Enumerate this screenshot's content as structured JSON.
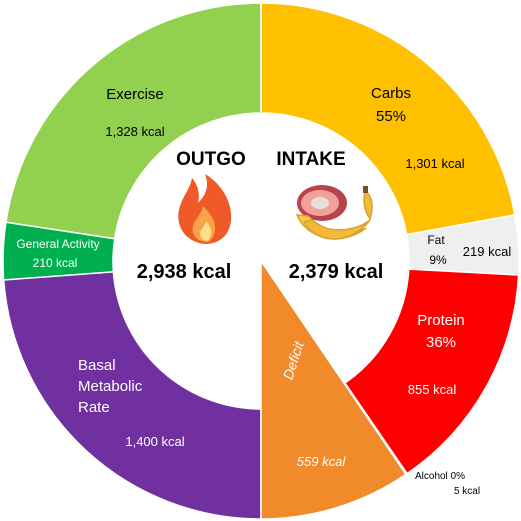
{
  "chart_data": {
    "type": "pie",
    "sides": [
      {
        "heading": "OUTGO",
        "total_label": "2,938 kcal",
        "total": 2938,
        "slices": [
          {
            "name_lines": [
              "Exercise"
            ],
            "value_label": "1,328 kcal",
            "value": 1328,
            "color": "#92D050"
          },
          {
            "name_lines": [
              "General Activity"
            ],
            "value_label": "210 kcal",
            "value": 210,
            "color": "#00B050"
          },
          {
            "name_lines": [
              "Basal",
              "Metabolic",
              "Rate"
            ],
            "value_label": "1,400 kcal",
            "value": 1400,
            "color": "#7030A0"
          }
        ]
      },
      {
        "heading": "INTAKE",
        "total_label": "2,379 kcal",
        "total": 2379,
        "slices": [
          {
            "name_lines": [
              "Carbs"
            ],
            "pct_label": "55%",
            "value_label": "1,301 kcal",
            "value": 1301,
            "color": "#FFC000"
          },
          {
            "name_lines": [
              "Fat"
            ],
            "pct_label": "9%",
            "value_label": "219 kcal",
            "value": 219,
            "color": "#EFEFEF"
          },
          {
            "name_lines": [
              "Protein"
            ],
            "pct_label": "36%",
            "value_label": "855 kcal",
            "value": 855,
            "color": "#FF0000"
          },
          {
            "name_lines": [
              "Alcohol 0%"
            ],
            "value_label": "5 kcal",
            "value": 5,
            "color": "#FFD0D0"
          }
        ],
        "deficit": {
          "name": "Deficit",
          "value_label": "559 kcal",
          "value": 559,
          "color": "#F08A2A"
        }
      }
    ]
  },
  "icons": {
    "outgo": "fire-icon",
    "intake": "food-icon"
  }
}
